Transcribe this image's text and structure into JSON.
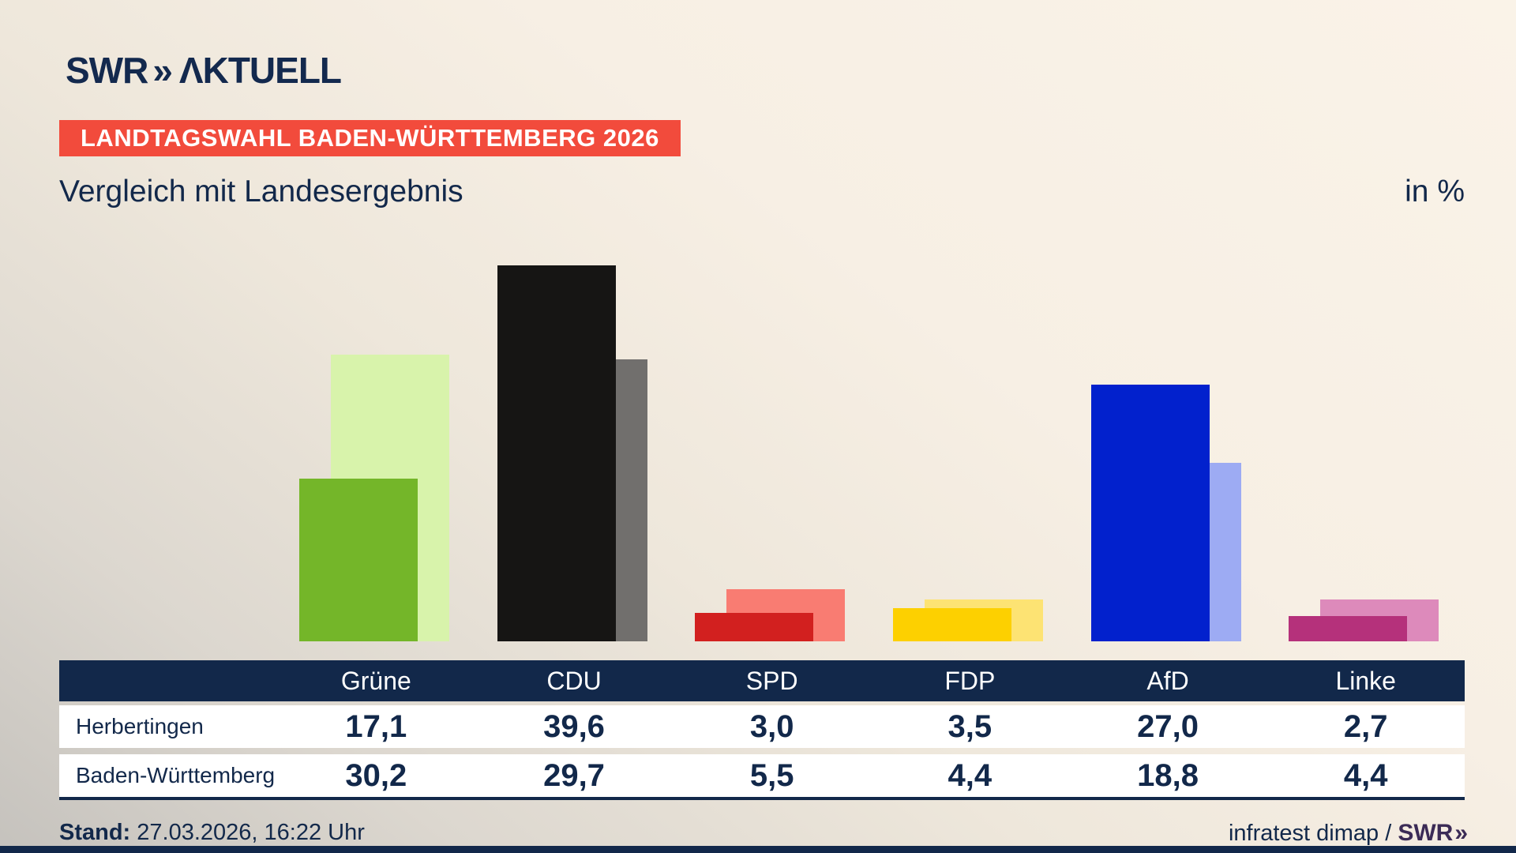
{
  "brand": {
    "logo_main": "SWR",
    "logo_chevrons": "»",
    "logo_suffix": "ΛKTUELL"
  },
  "header": {
    "banner": "LANDTAGSWAHL BADEN-WÜRTTEMBERG 2026",
    "title": "Vergleich mit Landesergebnis",
    "unit_label": "in %"
  },
  "chart_data": {
    "type": "bar",
    "categories": [
      "Grüne",
      "CDU",
      "SPD",
      "FDP",
      "AfD",
      "Linke"
    ],
    "series": [
      {
        "name": "Herbertingen",
        "values": [
          17.1,
          39.6,
          3.0,
          3.5,
          27.0,
          2.7
        ]
      },
      {
        "name": "Baden-Württemberg",
        "values": [
          30.2,
          29.7,
          5.5,
          4.4,
          18.8,
          4.4
        ]
      }
    ],
    "unit": "%",
    "decimal_separator": ",",
    "ylim": [
      0,
      40.1
    ],
    "grid": false,
    "legend_position": "table-below",
    "colors": {
      "Grüne": {
        "front": "#74b629",
        "back": "#d8f3ab"
      },
      "CDU": {
        "front": "#161514",
        "back": "#716f6d"
      },
      "SPD": {
        "front": "#d2201f",
        "back": "#f97c72"
      },
      "FDP": {
        "front": "#fdd000",
        "back": "#fde373"
      },
      "AfD": {
        "front": "#0221cd",
        "back": "#9dabf3"
      },
      "Linke": {
        "front": "#b5317b",
        "back": "#dd8abb"
      }
    }
  },
  "theme": {
    "navy": "#12284a",
    "banner_red": "#f24b3c",
    "footer_brand_purple": "#3b2b56",
    "background_cream": "#f7efe4",
    "background_gray": "#c5c2bd"
  },
  "footer": {
    "stand_label": "Stand:",
    "stand_value": " 27.03.2026, 16:22 Uhr",
    "source_prefix": "infratest dimap / ",
    "source_brand": "SWR",
    "source_chevrons": "»"
  }
}
